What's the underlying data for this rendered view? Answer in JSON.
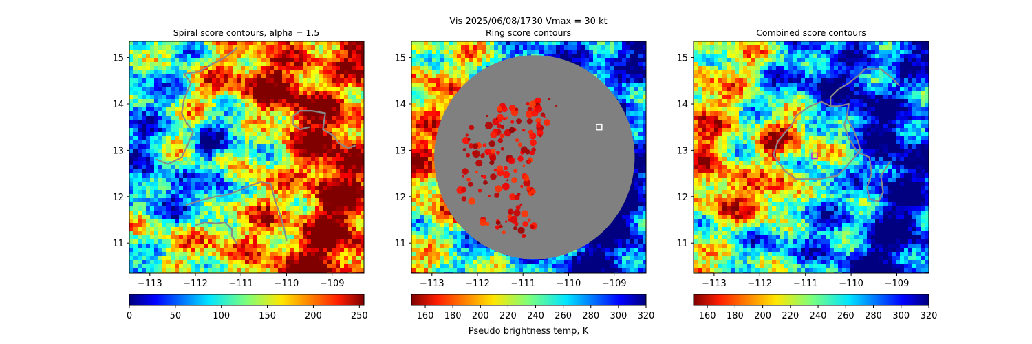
{
  "figure": {
    "suptitle_line1": "Vis  2025/06/08/1730    Vmax = 30 kt",
    "colorbar_label": "Pseudo brightness temp, K"
  },
  "chart_data": [
    {
      "type": "heatmap",
      "title": "Spiral score contours, alpha =  1.5",
      "xlim": [
        -113.45,
        -108.3
      ],
      "ylim": [
        10.35,
        15.35
      ],
      "xticks": [
        -113,
        -112,
        -111,
        -110,
        -109
      ],
      "xtick_labels": [
        "−113",
        "−112",
        "−111",
        "−110",
        "−109"
      ],
      "yticks": [
        11,
        12,
        13,
        14,
        15
      ],
      "ytick_labels": [
        "11",
        "12",
        "13",
        "14",
        "15"
      ],
      "colormap": "jet",
      "colorbar": {
        "range": [
          0,
          255
        ],
        "ticks": [
          0,
          50,
          100,
          150,
          200,
          250
        ],
        "tick_labels": [
          "0",
          "50",
          "100",
          "150",
          "200",
          "250"
        ],
        "reversed": false
      },
      "marker": {
        "shape": "plus",
        "lon": -110.8,
        "lat": 12.83,
        "color": "#ffffff"
      },
      "contours": [
        [
          [
            -112.25,
            14.65
          ],
          [
            -112.1,
            14.45
          ],
          [
            -112.25,
            14.1
          ],
          [
            -112.3,
            13.8
          ],
          [
            -112.2,
            13.6
          ],
          [
            -112.05,
            13.4
          ],
          [
            -112.2,
            13.05
          ],
          [
            -112.3,
            12.85
          ],
          [
            -112.5,
            12.75
          ],
          [
            -112.6,
            12.7
          ],
          [
            -112.85,
            12.8
          ]
        ],
        [
          [
            -112.25,
            14.65
          ],
          [
            -111.9,
            14.7
          ],
          [
            -111.65,
            14.85
          ],
          [
            -111.35,
            15.0
          ],
          [
            -111.1,
            15.2
          ]
        ],
        [
          [
            -112.2,
            11.82
          ],
          [
            -111.9,
            11.92
          ],
          [
            -111.55,
            12.0
          ],
          [
            -111.25,
            12.05
          ],
          [
            -110.9,
            12.2
          ],
          [
            -110.55,
            12.32
          ],
          [
            -110.35,
            12.28
          ],
          [
            -110.25,
            11.9
          ],
          [
            -110.15,
            11.65
          ],
          [
            -110.05,
            11.3
          ],
          [
            -110.0,
            11.05
          ]
        ],
        [
          [
            -112.0,
            11.38
          ],
          [
            -111.8,
            11.45
          ],
          [
            -111.55,
            11.42
          ],
          [
            -111.35,
            11.45
          ],
          [
            -111.2,
            11.3
          ],
          [
            -111.2,
            11.15
          ],
          [
            -111.1,
            11.0
          ]
        ],
        [
          [
            -109.7,
            13.85
          ],
          [
            -109.45,
            13.85
          ],
          [
            -109.15,
            13.8
          ],
          [
            -109.2,
            13.45
          ],
          [
            -108.95,
            13.3
          ],
          [
            -108.85,
            13.15
          ],
          [
            -108.65,
            13.05
          ],
          [
            -108.5,
            13.1
          ]
        ],
        [
          [
            -109.7,
            13.85
          ],
          [
            -109.85,
            13.75
          ],
          [
            -109.85,
            13.55
          ],
          [
            -109.7,
            13.45
          ],
          [
            -109.5,
            13.5
          ]
        ]
      ]
    },
    {
      "type": "heatmap",
      "title": "Ring score contours",
      "xlim": [
        -113.45,
        -108.3
      ],
      "ylim": [
        10.35,
        15.35
      ],
      "xticks": [
        -113,
        -112,
        -111,
        -110,
        -109
      ],
      "xtick_labels": [
        "−113",
        "−112",
        "−111",
        "−110",
        "−109"
      ],
      "yticks": [
        11,
        12,
        13,
        14,
        15
      ],
      "ytick_labels": [
        "11",
        "12",
        "13",
        "14",
        "15"
      ],
      "colormap": "jet_r",
      "colorbar": {
        "range": [
          150,
          320
        ],
        "ticks": [
          160,
          180,
          200,
          220,
          240,
          260,
          280,
          300,
          320
        ],
        "tick_labels": [
          "160",
          "180",
          "200",
          "220",
          "240",
          "260",
          "280",
          "300",
          "320"
        ],
        "reversed": true
      },
      "mask_circle": {
        "center": [
          -110.75,
          12.85
        ],
        "radius_deg": 2.2,
        "color": "#808080"
      },
      "marker": {
        "shape": "square",
        "lon": -109.33,
        "lat": 13.5,
        "color": "#ffffff"
      },
      "contours": []
    },
    {
      "type": "heatmap",
      "title": "Combined score contours",
      "xlim": [
        -113.45,
        -108.3
      ],
      "ylim": [
        10.35,
        15.35
      ],
      "xticks": [
        -113,
        -112,
        -111,
        -110,
        -109
      ],
      "xtick_labels": [
        "−113",
        "−112",
        "−111",
        "−110",
        "−109"
      ],
      "yticks": [
        11,
        12,
        13,
        14,
        15
      ],
      "ytick_labels": [
        "11",
        "12",
        "13",
        "14",
        "15"
      ],
      "colormap": "jet_r",
      "colorbar": {
        "range": [
          150,
          320
        ],
        "ticks": [
          160,
          180,
          200,
          220,
          240,
          260,
          280,
          300,
          320
        ],
        "tick_labels": [
          "160",
          "180",
          "200",
          "220",
          "240",
          "260",
          "280",
          "300",
          "320"
        ],
        "reversed": true
      },
      "marker": {
        "shape": "square",
        "lon": -110.8,
        "lat": 12.88,
        "color": "#d020d0"
      },
      "contours": [
        [
          [
            -111.2,
            13.75
          ],
          [
            -110.9,
            13.95
          ],
          [
            -110.65,
            14.05
          ],
          [
            -110.45,
            13.95
          ],
          [
            -110.3,
            13.95
          ],
          [
            -110.05,
            14.0
          ],
          [
            -110.1,
            13.7
          ],
          [
            -109.95,
            13.45
          ],
          [
            -109.85,
            13.2
          ],
          [
            -109.8,
            13.0
          ],
          [
            -110.1,
            12.65
          ],
          [
            -110.3,
            12.45
          ],
          [
            -110.7,
            12.38
          ],
          [
            -111.2,
            12.38
          ],
          [
            -111.45,
            12.55
          ],
          [
            -111.7,
            12.9
          ],
          [
            -111.6,
            13.2
          ],
          [
            -111.3,
            13.55
          ],
          [
            -111.2,
            13.75
          ]
        ],
        [
          [
            -110.45,
            13.95
          ],
          [
            -110.45,
            14.15
          ],
          [
            -110.3,
            14.3
          ],
          [
            -110.05,
            14.45
          ],
          [
            -109.85,
            14.6
          ],
          [
            -109.7,
            14.75
          ],
          [
            -109.35,
            14.75
          ],
          [
            -109.1,
            14.55
          ],
          [
            -108.95,
            14.4
          ]
        ],
        [
          [
            -110.1,
            13.7
          ],
          [
            -110.15,
            13.55
          ],
          [
            -110.05,
            13.25
          ],
          [
            -109.85,
            12.95
          ],
          [
            -109.6,
            12.85
          ],
          [
            -109.55,
            12.5
          ],
          [
            -109.65,
            12.2
          ],
          [
            -109.6,
            11.95
          ],
          [
            -109.4,
            11.9
          ],
          [
            -109.3,
            12.1
          ],
          [
            -109.35,
            12.45
          ],
          [
            -109.25,
            12.6
          ],
          [
            -109.15,
            12.75
          ]
        ]
      ]
    }
  ]
}
